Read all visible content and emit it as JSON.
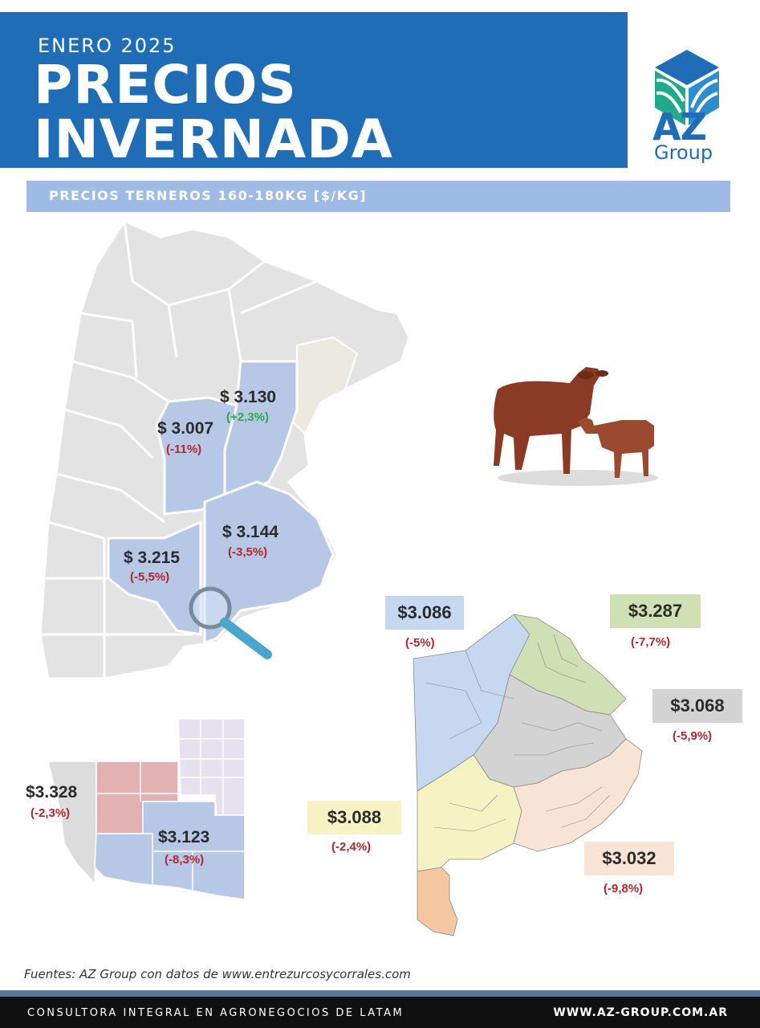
{
  "header": {
    "subtitle": "ENERO 2025",
    "title_line1": "PRECIOS",
    "title_line2": "INVERNADA",
    "brand_color": "#1f6db6"
  },
  "logo": {
    "az": "AZ",
    "group": "Group",
    "icon": "az-group-cube-logo"
  },
  "banner": {
    "text": "PRECIOS TERNEROS 160-180KG [$/KG]",
    "color": "#9dbbe4"
  },
  "main_map": {
    "regions": [
      {
        "name": "entre-rios",
        "price": "$ 3.130",
        "change": "(+2,3%)",
        "trend": "up"
      },
      {
        "name": "cordoba",
        "price": "$ 3.007",
        "change": "(-11%)",
        "trend": "down"
      },
      {
        "name": "buenos-aires",
        "price": "$ 3.144",
        "change": "(-3,5%)",
        "trend": "down"
      },
      {
        "name": "la-pampa",
        "price": "$ 3.215",
        "change": "(-5,5%)",
        "trend": "down"
      }
    ],
    "icon": "magnifier-icon"
  },
  "la_pampa_detail": {
    "west": {
      "price": "$3.328",
      "change": "(-2,3%)"
    },
    "south": {
      "price": "$3.123",
      "change": "(-8,3%)"
    }
  },
  "buenos_aires_detail": [
    {
      "name": "northwest",
      "price": "$3.086",
      "change": "(-5%)",
      "color": "#c5d8f0"
    },
    {
      "name": "north",
      "price": "$3.287",
      "change": "(-7,7%)",
      "color": "#cfe0b4"
    },
    {
      "name": "center",
      "price": "$3.068",
      "change": "(-5,9%)",
      "color": "#d3d3d3"
    },
    {
      "name": "southwest",
      "price": "$3.088",
      "change": "(-2,4%)",
      "color": "#f7f2c4"
    },
    {
      "name": "southeast",
      "price": "$3.032",
      "change": "(-9,8%)",
      "color": "#f8e4d4"
    }
  ],
  "source": "Fuentes: AZ Group con datos de www.entrezurcosycorrales.com",
  "footer": {
    "left": "CONSULTORA INTEGRAL EN AGRONEGOCIOS DE LATAM",
    "right": "WWW.AZ-GROUP.COM.AR"
  }
}
